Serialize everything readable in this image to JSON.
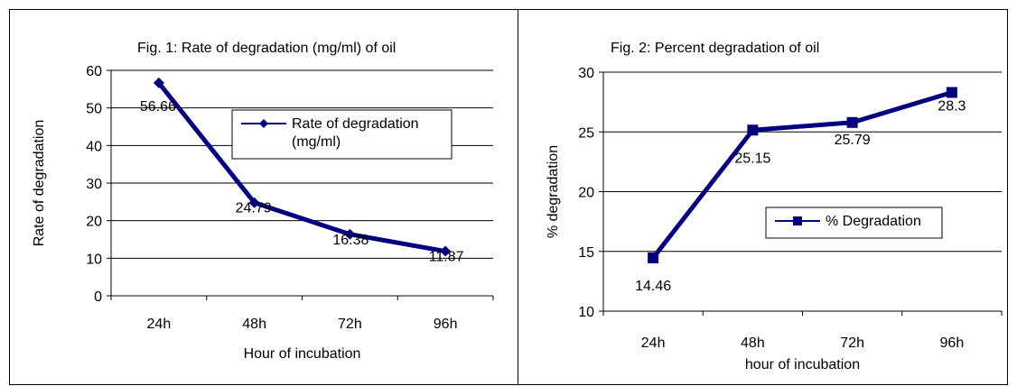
{
  "chart_data": [
    {
      "type": "line",
      "title": "Fig. 1: Rate of degradation (mg/ml) of oil",
      "xlabel": "Hour of incubation",
      "ylabel": "Rate of degradation",
      "categories": [
        "24h",
        "48h",
        "72h",
        "96h"
      ],
      "ylim": [
        0,
        60
      ],
      "yticks": [
        0,
        10,
        20,
        30,
        40,
        50,
        60
      ],
      "grid": true,
      "legend_position": "center-right",
      "marker": "diamond",
      "series": [
        {
          "name": "Rate of degradation (mg/ml)",
          "legend_lines": [
            "Rate of degradation",
            "(mg/ml)"
          ],
          "values": [
            56.66,
            24.79,
            16.38,
            11.87
          ],
          "labels": [
            "56.66",
            "24.79",
            "16.38",
            "11.87"
          ],
          "color": "#000080"
        }
      ]
    },
    {
      "type": "line",
      "title": "Fig. 2: Percent degradation of oil",
      "xlabel": "hour of incubation",
      "ylabel": "% degradation",
      "categories": [
        "24h",
        "48h",
        "72h",
        "96h"
      ],
      "ylim": [
        10,
        30
      ],
      "yticks": [
        10,
        15,
        20,
        25,
        30
      ],
      "grid": true,
      "legend_position": "center-right",
      "marker": "square",
      "series": [
        {
          "name": "% Degradation",
          "legend_lines": [
            "% Degradation"
          ],
          "values": [
            14.46,
            25.15,
            25.79,
            28.3
          ],
          "labels": [
            "14.46",
            "25.15",
            "25.79",
            "28.3"
          ],
          "color": "#000080"
        }
      ]
    }
  ]
}
